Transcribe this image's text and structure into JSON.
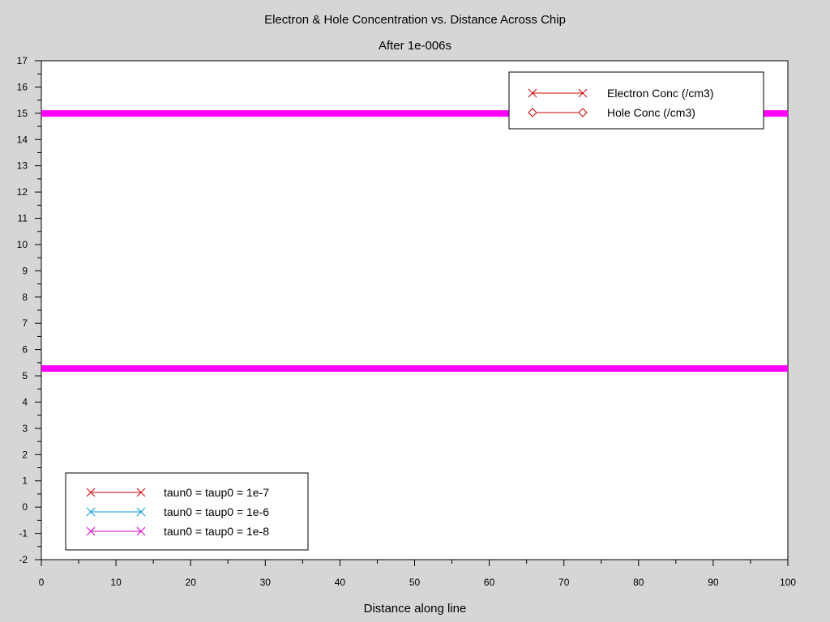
{
  "chart_data": {
    "type": "line",
    "title": "Electron & Hole Concentration vs. Distance Across Chip",
    "subtitle": "After 1e-006s",
    "xlabel": "Distance along line",
    "ylabel": "",
    "xlim": [
      0,
      100
    ],
    "ylim": [
      -2,
      17
    ],
    "x_ticks": [
      "0",
      "10",
      "20",
      "30",
      "40",
      "50",
      "60",
      "70",
      "80",
      "90",
      "100"
    ],
    "y_ticks": [
      "-2",
      "-1",
      "0",
      "1",
      "2",
      "3",
      "4",
      "5",
      "6",
      "7",
      "8",
      "9",
      "10",
      "11",
      "12",
      "13",
      "14",
      "15",
      "16",
      "17"
    ],
    "grid": false,
    "series": [
      {
        "name": "Electron Conc (/cm3)",
        "x": [
          0,
          100
        ],
        "y": [
          14.99,
          14.99
        ],
        "color": "#ff00ff"
      },
      {
        "name": "Hole Conc (/cm3)",
        "x": [
          0,
          100
        ],
        "y": [
          5.28,
          5.28
        ],
        "color": "#ff00ff"
      }
    ],
    "legend_marker": {
      "placement": "top-right",
      "entries": [
        {
          "label": "Electron Conc (/cm3)",
          "marker": "x",
          "color": "#cc0000"
        },
        {
          "label": "Hole Conc (/cm3)",
          "marker": "diamond",
          "color": "#cc0000"
        }
      ]
    },
    "legend_tau": {
      "placement": "bottom-left",
      "entries": [
        {
          "label": "taun0 = taup0 = 1e-7",
          "marker": "x",
          "color": "#cc0000"
        },
        {
          "label": "taun0 = taup0 = 1e-6",
          "marker": "x",
          "color": "#0099dd"
        },
        {
          "label": "taun0 = taup0 = 1e-8",
          "marker": "x",
          "color": "#cc00cc"
        }
      ]
    }
  }
}
